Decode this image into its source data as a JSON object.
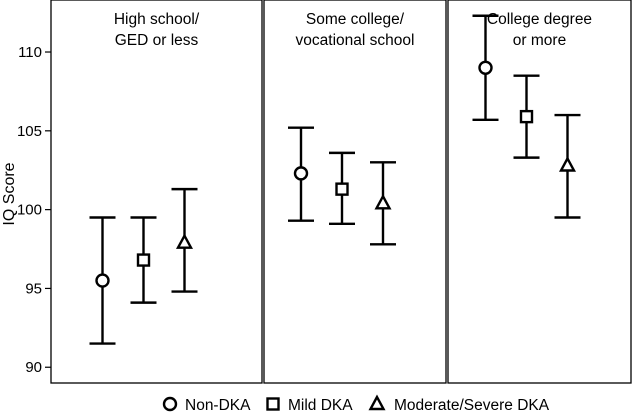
{
  "chart_data": {
    "type": "scatter",
    "variant": "point-range",
    "ylabel": "IQ Score",
    "ylim": [
      89,
      113.3
    ],
    "yticks": [
      90,
      95,
      100,
      105,
      110
    ],
    "panels": [
      {
        "title_lines": [
          "High school/",
          "GED or less"
        ],
        "points": [
          {
            "series": "Non-DKA",
            "value": 95.5,
            "lower": 91.5,
            "upper": 99.5
          },
          {
            "series": "Mild DKA",
            "value": 96.8,
            "lower": 94.1,
            "upper": 99.5
          },
          {
            "series": "Moderate/Severe DKA",
            "value": 97.9,
            "lower": 94.8,
            "upper": 101.3
          }
        ]
      },
      {
        "title_lines": [
          "Some college/",
          "vocational school"
        ],
        "points": [
          {
            "series": "Non-DKA",
            "value": 102.3,
            "lower": 99.3,
            "upper": 105.2
          },
          {
            "series": "Mild DKA",
            "value": 101.3,
            "lower": 99.1,
            "upper": 103.6
          },
          {
            "series": "Moderate/Severe DKA",
            "value": 100.4,
            "lower": 97.8,
            "upper": 103.0
          }
        ]
      },
      {
        "title_lines": [
          "College degree",
          "or more"
        ],
        "points": [
          {
            "series": "Non-DKA",
            "value": 109.0,
            "lower": 105.7,
            "upper": 112.3
          },
          {
            "series": "Mild DKA",
            "value": 105.9,
            "lower": 103.3,
            "upper": 108.5
          },
          {
            "series": "Moderate/Severe DKA",
            "value": 102.8,
            "lower": 99.5,
            "upper": 106.0
          }
        ]
      }
    ],
    "legend": {
      "placement": "bottom",
      "entries": [
        {
          "label": "Non-DKA",
          "marker": "circle"
        },
        {
          "label": "Mild DKA",
          "marker": "square"
        },
        {
          "label": "Moderate/Severe DKA",
          "marker": "triangle"
        }
      ]
    }
  }
}
